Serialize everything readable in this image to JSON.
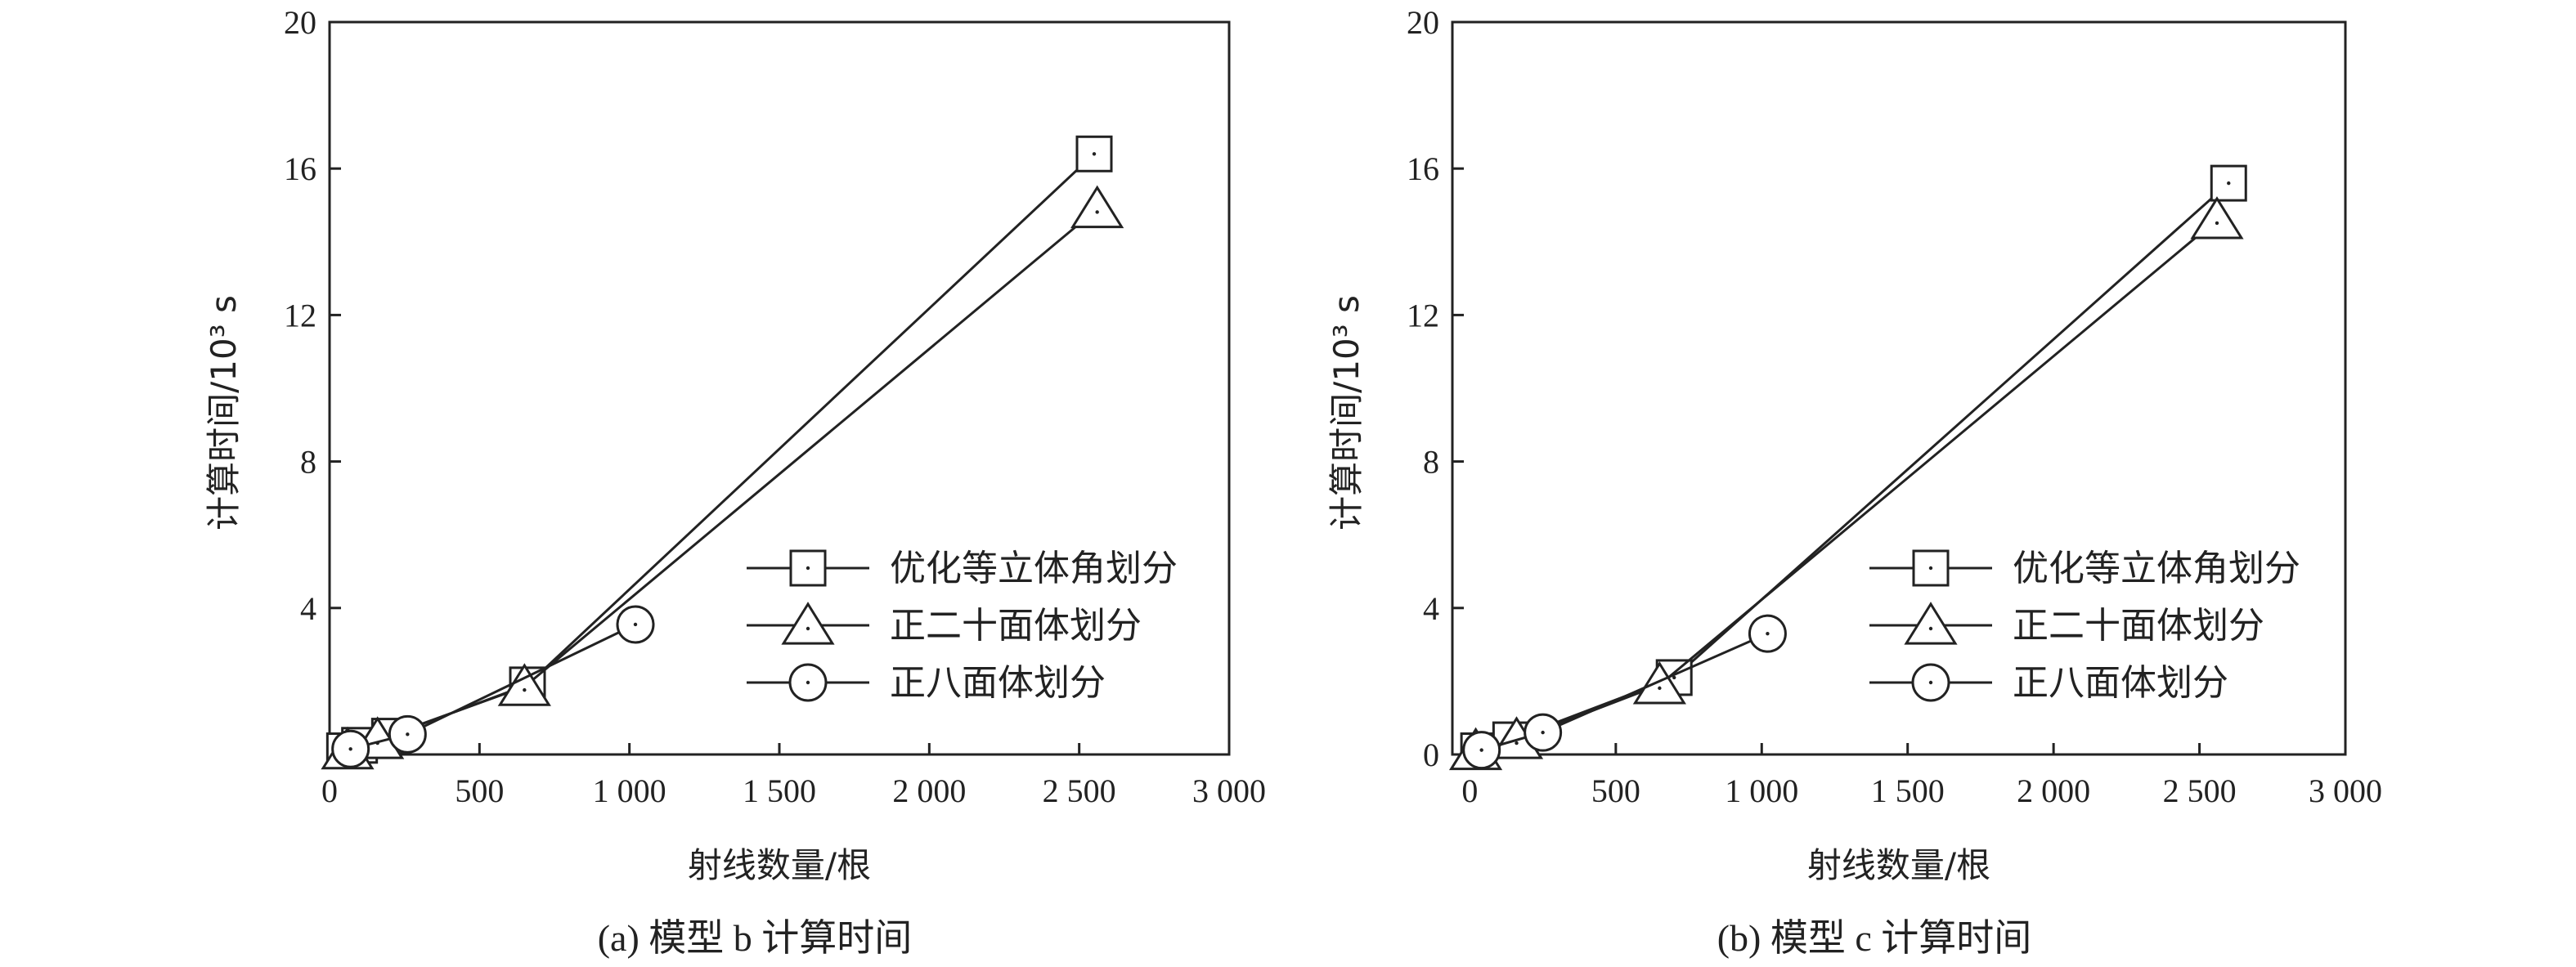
{
  "chart_data": [
    {
      "type": "line",
      "panel": "a",
      "caption": "(a) 模型 b 计算时间",
      "xlabel": "射线数量/根",
      "ylabel": "计算时间/10³ s",
      "xlim": [
        0,
        3000
      ],
      "ylim": [
        0,
        20
      ],
      "xticks": [
        0,
        500,
        1000,
        1500,
        2000,
        2500,
        3000
      ],
      "xtick_labels": [
        "0",
        "500",
        "1 000",
        "1 500",
        "2 000",
        "2 500",
        "3 000"
      ],
      "yticks": [
        4,
        8,
        12,
        16,
        20
      ],
      "ytick_labels": [
        "4",
        "8",
        "12",
        "16",
        "20"
      ],
      "grid": false,
      "legend": "center-right",
      "series": [
        {
          "name": "优化等立体角划分",
          "marker": "square",
          "x": [
            50,
            100,
            200,
            660,
            2550
          ],
          "y": [
            0.1,
            0.25,
            0.5,
            1.9,
            16.4
          ]
        },
        {
          "name": "正二十面体划分",
          "marker": "triangle",
          "x": [
            60,
            160,
            650,
            2560
          ],
          "y": [
            0.12,
            0.4,
            1.85,
            14.9
          ]
        },
        {
          "name": "正八面体划分",
          "marker": "circle",
          "x": [
            70,
            260,
            1020
          ],
          "y": [
            0.15,
            0.55,
            3.55
          ]
        }
      ]
    },
    {
      "type": "line",
      "panel": "b",
      "caption": "(b) 模型 c 计算时间",
      "xlabel": "射线数量/根",
      "ylabel": "计算时间/10³ s",
      "xlim": [
        -60,
        3000
      ],
      "ylim": [
        0,
        20
      ],
      "xticks": [
        0,
        500,
        1000,
        1500,
        2000,
        2500,
        3000
      ],
      "xtick_labels": [
        "0",
        "500",
        "1 000",
        "1 500",
        "2 000",
        "2 500",
        "3 000"
      ],
      "yticks": [
        0,
        4,
        8,
        12,
        16,
        20
      ],
      "ytick_labels": [
        "0",
        "4",
        "8",
        "12",
        "16",
        "20"
      ],
      "grid": false,
      "legend": "center-right",
      "series": [
        {
          "name": "优化等立体角划分",
          "marker": "square",
          "x": [
            30,
            140,
            700,
            2600
          ],
          "y": [
            0.1,
            0.4,
            2.1,
            15.6
          ]
        },
        {
          "name": "正二十面体划分",
          "marker": "triangle",
          "x": [
            20,
            160,
            650,
            2560
          ],
          "y": [
            0.1,
            0.4,
            1.9,
            14.6
          ]
        },
        {
          "name": "正八面体划分",
          "marker": "circle",
          "x": [
            40,
            250,
            1020
          ],
          "y": [
            0.12,
            0.6,
            3.3
          ]
        }
      ]
    }
  ]
}
